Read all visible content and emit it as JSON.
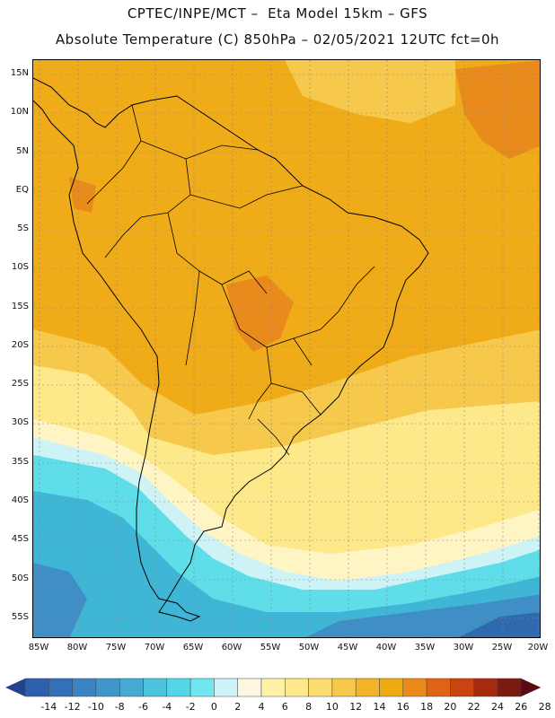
{
  "header": {
    "title_line1": "CPTEC/INPE/MCT –  Eta Model 15km – GFS",
    "title_line2": "Absolute Temperature (C) 850hPa – 02/05/2021 12UTC fct=0h"
  },
  "axes": {
    "lat_labels": [
      "15N",
      "10N",
      "5N",
      "EQ",
      "5S",
      "10S",
      "15S",
      "20S",
      "25S",
      "30S",
      "35S",
      "40S",
      "45S",
      "50S",
      "55S"
    ],
    "lon_labels": [
      "85W",
      "80W",
      "75W",
      "70W",
      "65W",
      "60W",
      "55W",
      "50W",
      "45W",
      "40W",
      "35W",
      "30W",
      "25W",
      "20W"
    ]
  },
  "colorbar": {
    "ticks": [
      "-14",
      "-12",
      "-10",
      "-8",
      "-6",
      "-4",
      "-2",
      "0",
      "2",
      "4",
      "6",
      "8",
      "10",
      "12",
      "14",
      "16",
      "18",
      "20",
      "22",
      "24",
      "26",
      "28"
    ],
    "colors": [
      "#2a4fa0",
      "#2e5fae",
      "#3370b8",
      "#3a84c2",
      "#3f97cb",
      "#45abd3",
      "#4cc2dc",
      "#55d6e6",
      "#6ee8ee",
      "#cdf3f7",
      "#fdf7e1",
      "#fff2a6",
      "#fde98a",
      "#fbdc6e",
      "#f6c94d",
      "#f3b42a",
      "#eeaa10",
      "#e98a1a",
      "#df6418",
      "#c94410",
      "#a62a0e",
      "#7a1a10",
      "#5a0a10"
    ]
  },
  "map": {
    "region": "South America",
    "variable": "Absolute Temperature 850hPa",
    "colors": {
      "orange_warm": "#f0ac18",
      "orange_hot": "#e88a1c",
      "yellow_mid": "#f7cb4a",
      "yellow_light": "#fde98a",
      "cream": "#fff4c4",
      "light_cyan": "#cdf3f7",
      "cyan": "#5fdde8",
      "teal": "#3fb6d6",
      "blue": "#3f8fc6",
      "deep_blue": "#2f6aae"
    }
  }
}
